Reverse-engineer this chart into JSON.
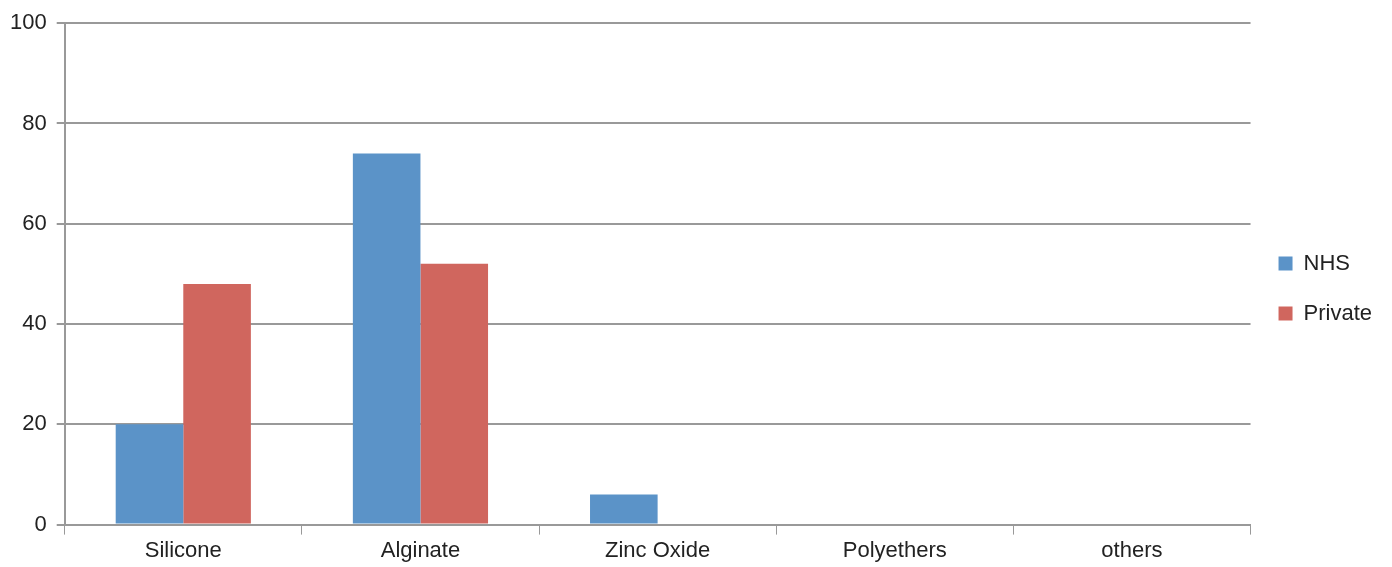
{
  "chart_data": {
    "type": "bar",
    "categories": [
      "Silicone",
      "Alginate",
      "Zinc Oxide",
      "Polyethers",
      "others"
    ],
    "series": [
      {
        "name": "NHS",
        "color": "#5b93c8",
        "values": [
          20,
          74,
          6,
          0,
          0
        ]
      },
      {
        "name": "Private",
        "color": "#d0665e",
        "values": [
          48,
          52,
          0,
          0,
          0
        ]
      }
    ],
    "ylim": [
      0,
      100
    ],
    "yticks": [
      0,
      20,
      40,
      60,
      80,
      100
    ],
    "grid": "y",
    "legend": "right"
  }
}
